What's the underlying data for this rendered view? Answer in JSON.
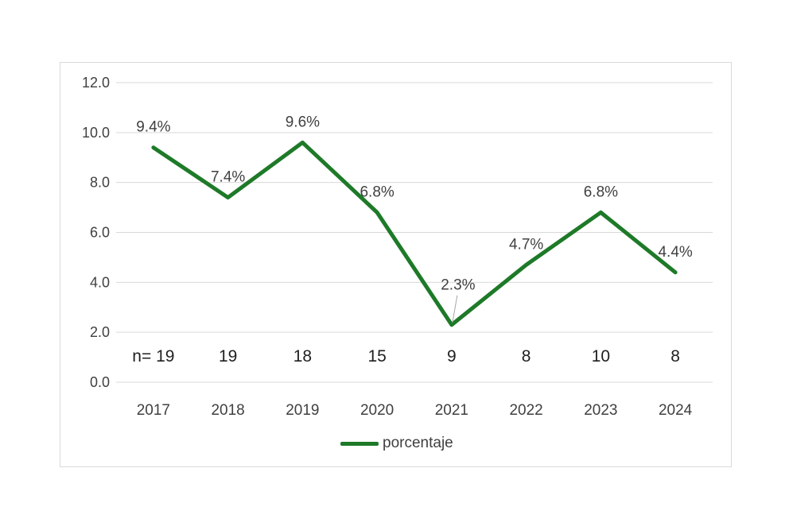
{
  "chart_data": {
    "type": "line",
    "title": "",
    "categories": [
      "2017",
      "2018",
      "2019",
      "2020",
      "2021",
      "2022",
      "2023",
      "2024"
    ],
    "series": [
      {
        "name": "porcentaje",
        "values": [
          9.4,
          7.4,
          9.6,
          6.8,
          2.3,
          4.7,
          6.8,
          4.4
        ]
      }
    ],
    "data_labels": [
      "9.4%",
      "7.4%",
      "9.6%",
      "6.8%",
      "2.3%",
      "4.7%",
      "6.8%",
      "4.4%"
    ],
    "data_label_leader_index": 4,
    "n_row": {
      "prefix": "n=",
      "values": [
        "19",
        "19",
        "18",
        "15",
        "9",
        "8",
        "10",
        "8"
      ]
    },
    "ylim": [
      0,
      12
    ],
    "ytick_step": 2,
    "ytick_labels": [
      "0.0",
      "2.0",
      "4.0",
      "6.0",
      "8.0",
      "10.0",
      "12.0"
    ],
    "grid": true,
    "legend": {
      "label": "porcentaje",
      "position": "bottom"
    },
    "colors": {
      "line": "#1e7a28",
      "gridline": "#d9d9d9",
      "frame_border": "#d9d9d9",
      "axis_text": "#404040",
      "data_label_text": "#404040",
      "n_text": "#1f1f1f",
      "leader_line": "#a6a6a6",
      "background": "#ffffff"
    }
  }
}
